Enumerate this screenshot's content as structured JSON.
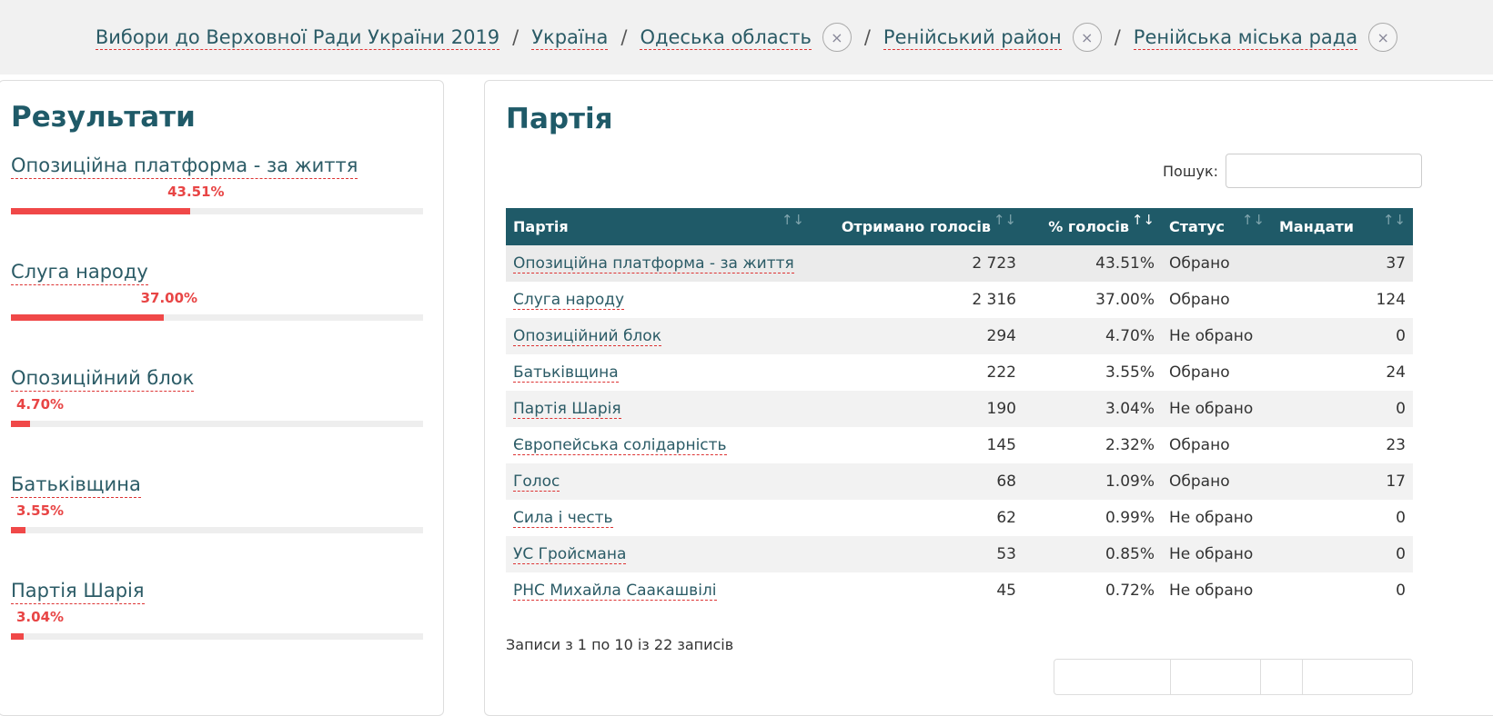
{
  "breadcrumb": [
    {
      "label": "Вибори до Верховної Ради України 2019",
      "removable": false
    },
    {
      "label": "Україна",
      "removable": false
    },
    {
      "label": "Одеська область",
      "removable": true
    },
    {
      "label": "Ренійський район",
      "removable": true
    },
    {
      "label": "Ренійська міська рада",
      "removable": true
    }
  ],
  "results": {
    "title": "Результати",
    "items": [
      {
        "name": "Опозиційна платформа - за життя",
        "pct": "43.51%",
        "value": 43.51
      },
      {
        "name": "Слуга народу",
        "pct": "37.00%",
        "value": 37.0
      },
      {
        "name": "Опозиційний блок",
        "pct": "4.70%",
        "value": 4.7
      },
      {
        "name": "Батьківщина",
        "pct": "3.55%",
        "value": 3.55
      },
      {
        "name": "Партія Шарія",
        "pct": "3.04%",
        "value": 3.04
      }
    ]
  },
  "party": {
    "title": "Партія",
    "search_label": "Пошук:",
    "search_value": "",
    "columns": [
      "Партія",
      "Отримано голосів",
      "% голосів",
      "Статус",
      "Мандати"
    ],
    "rows": [
      [
        "Опозиційна платформа - за життя",
        "2 723",
        "43.51%",
        "Обрано",
        "37"
      ],
      [
        "Слуга народу",
        "2 316",
        "37.00%",
        "Обрано",
        "124"
      ],
      [
        "Опозиційний блок",
        "294",
        "4.70%",
        "Не обрано",
        "0"
      ],
      [
        "Батьківщина",
        "222",
        "3.55%",
        "Обрано",
        "24"
      ],
      [
        "Партія Шарія",
        "190",
        "3.04%",
        "Не обрано",
        "0"
      ],
      [
        "Європейська солідарність",
        "145",
        "2.32%",
        "Обрано",
        "23"
      ],
      [
        "Голос",
        "68",
        "1.09%",
        "Обрано",
        "17"
      ],
      [
        "Сила і честь",
        "62",
        "0.99%",
        "Не обрано",
        "0"
      ],
      [
        "УС Гройсмана",
        "53",
        "0.85%",
        "Не обрано",
        "0"
      ],
      [
        "РНС Михайла Саакашвілі",
        "45",
        "0.72%",
        "Не обрано",
        "0"
      ]
    ],
    "info": "Записи з 1 по 10 із 22 записів"
  },
  "colors": {
    "accent": "#1f5a68",
    "bar": "#f04848"
  }
}
